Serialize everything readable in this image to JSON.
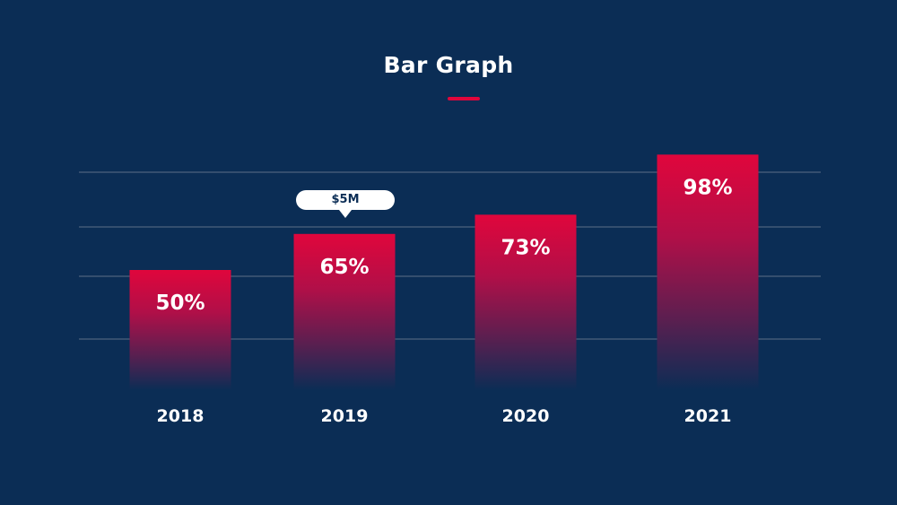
{
  "chart_data": {
    "type": "bar",
    "title": "Bar Graph",
    "categories": [
      "2018",
      "2019",
      "2020",
      "2021"
    ],
    "values": [
      50,
      65,
      73,
      98
    ],
    "value_labels": [
      "50%",
      "65%",
      "73%",
      "98%"
    ],
    "unit": "%",
    "grid": true,
    "annotations": [
      {
        "category": "2019",
        "text": "$5M"
      }
    ],
    "colors": {
      "background": "#0b2d55",
      "bar_top": "#e0063c",
      "bar_bottom": "#0b2d55",
      "grid": "#5d6f86",
      "text": "#ffffff",
      "accent": "#e0063c"
    }
  }
}
